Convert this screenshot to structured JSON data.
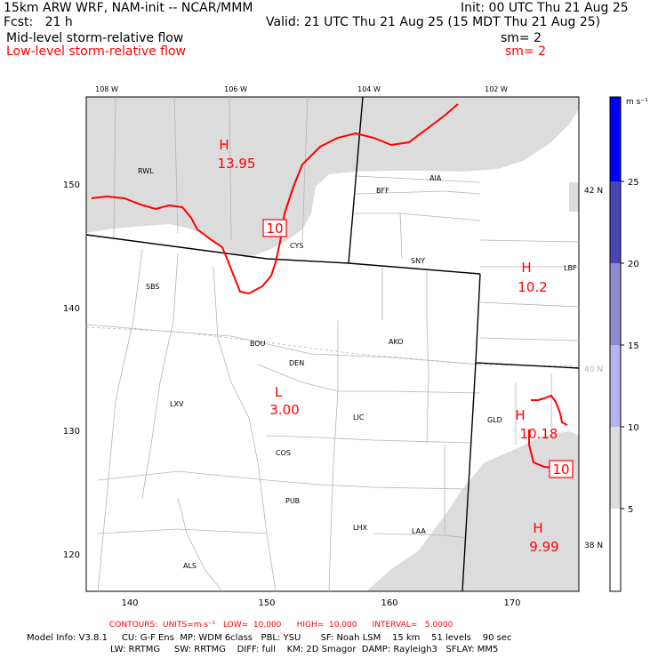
{
  "header": {
    "model_line": "15km ARW WRF, NAM-init -- NCAR/MMM",
    "forecast": "Fcst:   21 h",
    "init": "Init: 00 UTC Thu 21 Aug 25",
    "valid": "Valid: 21 UTC Thu 21 Aug 25 (15 MDT Thu 21 Aug 25)",
    "field1": "Mid-level storm-relative flow",
    "field1_sm": "sm= 2",
    "field2": "Low-level storm-relative flow",
    "field2_sm": "sm= 2"
  },
  "map": {
    "top_lon_labels": [
      "108 W",
      "106 W",
      "104 W",
      "102 W"
    ],
    "right_lat_labels": [
      "42 N",
      "40 N",
      "38 N"
    ],
    "x_ticks": [
      "140",
      "150",
      "160",
      "170"
    ],
    "y_ticks": [
      "150",
      "140",
      "130",
      "120"
    ],
    "stations": [
      "RWL",
      "BFF",
      "AIA",
      "CYS",
      "SNY",
      "LBF",
      "SBS",
      "AKO",
      "BOU",
      "DEN",
      "LXV",
      "LIC",
      "GLD",
      "COS",
      "PUB",
      "LHX",
      "LAA",
      "ALS"
    ],
    "extrema": [
      {
        "type": "H",
        "value": "13.95"
      },
      {
        "type": "H",
        "value": "10.2"
      },
      {
        "type": "L",
        "value": "3.00"
      },
      {
        "type": "H",
        "value": "10.18"
      },
      {
        "type": "H",
        "value": "9.99"
      }
    ],
    "contour_labels": [
      "10",
      "10"
    ]
  },
  "colorbar": {
    "unit": "m s⁻¹",
    "levels": [
      "5",
      "10",
      "15",
      "20",
      "25"
    ],
    "colors": [
      "#ffffff",
      "#dcdcdc",
      "#b4b4f0",
      "#8c8cd2",
      "#4646b4",
      "#0000ff"
    ]
  },
  "footer": {
    "contours": "CONTOURS:  UNITS=m s⁻¹   LOW=  10.000      HIGH=  10.000      INTERVAL=   5.0000",
    "model_info_1": "Model Info: V3.8.1     CU: G-F Ens  MP: WDM 6class   PBL: YSU       SF: Noah LSM    15 km    51 levels    90 sec",
    "model_info_2": "LW: RRTMG     SW: RRTMG    DIFF: full    KM: 2D Smagor  DAMP: Rayleigh3   SFLAY: MM5"
  }
}
